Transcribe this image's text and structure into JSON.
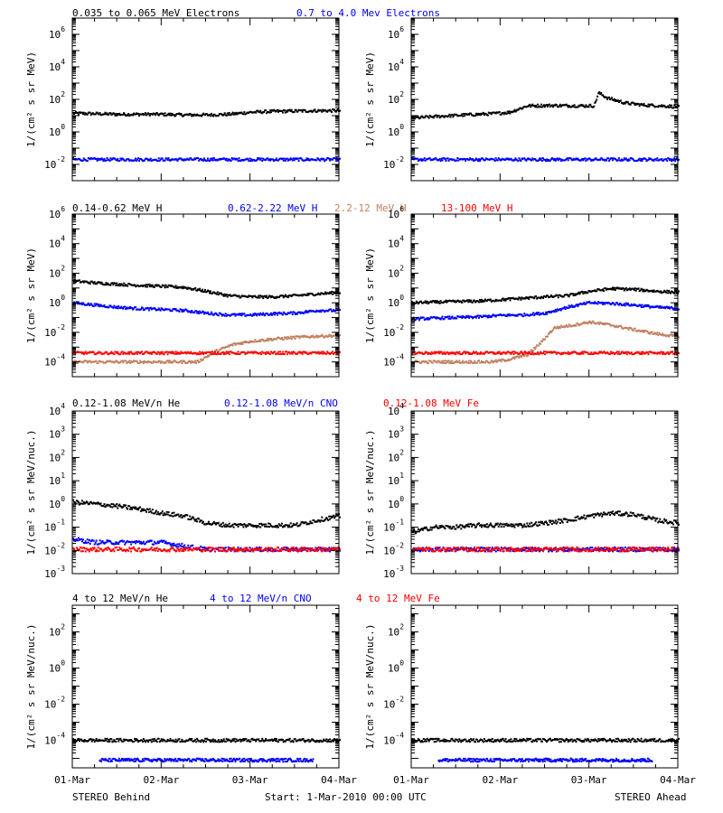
{
  "row_titles": [
    [
      {
        "text": "0.035 to 0.065 MeV Electrons",
        "color": "#000000"
      },
      {
        "text": "0.7 to 4.0 Mev Electrons",
        "color": "#0000ff"
      }
    ],
    [
      {
        "text": "0.14-0.62 MeV H",
        "color": "#000000"
      },
      {
        "text": "0.62-2.22 MeV H",
        "color": "#0000ff"
      },
      {
        "text": "2.2-12 MeV H",
        "color": "#c08060"
      },
      {
        "text": "13-100 MeV H",
        "color": "#ff0000"
      }
    ],
    [
      {
        "text": "0.12-1.08 MeV/n He",
        "color": "#000000"
      },
      {
        "text": "0.12-1.08 MeV/n CNO",
        "color": "#0000ff"
      },
      {
        "text": "0.12-1.08 MeV Fe",
        "color": "#ff0000"
      }
    ],
    [
      {
        "text": "4 to 12 MeV/n He",
        "color": "#000000"
      },
      {
        "text": "4 to 12 MeV/n CNO",
        "color": "#0000ff"
      },
      {
        "text": "4 to 12 MeV Fe",
        "color": "#ff0000"
      }
    ]
  ],
  "footer": {
    "left": "STEREO Behind",
    "center": "Start:  1-Mar-2010 00:00 UTC",
    "right": "STEREO Ahead"
  },
  "chart_data": [
    {
      "type": "scatter",
      "panel": "Behind electrons",
      "ylabel": "1/(cm² s sr MeV)",
      "yscale": "log",
      "ylim": [
        0.001,
        10000000
      ],
      "yticks_base": "10",
      "yticks_exp": [
        "-2",
        "0",
        "2",
        "4",
        "6"
      ],
      "xticks": [],
      "series": [
        {
          "name": "0.035 to 0.065 MeV Electrons",
          "color": "#000000",
          "x": [
            0,
            0.25,
            0.5,
            0.75,
            1.0,
            1.25,
            1.5,
            1.75,
            2.0,
            2.25,
            2.5,
            2.75,
            3.0
          ],
          "y": [
            14,
            13,
            12,
            12,
            12,
            11,
            11,
            12,
            16,
            18,
            19,
            20,
            20
          ]
        },
        {
          "name": "0.7 to 4.0 Mev Electrons",
          "color": "#0000ff",
          "x": [
            0,
            0.5,
            1.0,
            1.5,
            2.0,
            2.5,
            3.0
          ],
          "y": [
            0.02,
            0.02,
            0.02,
            0.02,
            0.02,
            0.02,
            0.02
          ]
        }
      ]
    },
    {
      "type": "scatter",
      "panel": "Ahead electrons",
      "ylabel": "1/(cm² s sr MeV)",
      "yscale": "log",
      "ylim": [
        0.001,
        10000000
      ],
      "yticks_base": "10",
      "yticks_exp": [
        "-2",
        "0",
        "2",
        "4",
        "6"
      ],
      "xticks": [],
      "series": [
        {
          "name": "0.035 to 0.065 MeV Electrons",
          "color": "#000000",
          "x": [
            0,
            0.3,
            0.6,
            0.9,
            1.1,
            1.3,
            1.6,
            1.9,
            2.05,
            2.1,
            2.2,
            2.4,
            2.6,
            2.8,
            3.0
          ],
          "y": [
            7,
            9,
            11,
            13,
            16,
            40,
            42,
            40,
            40,
            250,
            120,
            60,
            45,
            40,
            35
          ]
        },
        {
          "name": "0.7 to 4.0 Mev Electrons",
          "color": "#0000ff",
          "x": [
            0,
            0.5,
            1.0,
            1.5,
            2.0,
            2.5,
            3.0
          ],
          "y": [
            0.02,
            0.02,
            0.02,
            0.02,
            0.02,
            0.02,
            0.02
          ]
        }
      ]
    },
    {
      "type": "scatter",
      "panel": "Behind protons",
      "ylabel": "1/(cm² s sr MeV)",
      "yscale": "log",
      "ylim": [
        1e-05,
        1000000
      ],
      "yticks_base": "10",
      "yticks_exp": [
        "-4",
        "-2",
        "0",
        "2",
        "4",
        "6"
      ],
      "xticks": [],
      "series": [
        {
          "name": "0.14-0.62 MeV H",
          "color": "#000000",
          "x": [
            0,
            0.25,
            0.5,
            0.75,
            1.0,
            1.25,
            1.5,
            1.75,
            2.0,
            2.25,
            2.5,
            2.75,
            3.0
          ],
          "y": [
            30,
            22,
            18,
            15,
            13,
            11,
            6,
            3,
            2.5,
            2.5,
            3,
            4,
            5
          ]
        },
        {
          "name": "0.62-2.22 MeV H",
          "color": "#0000ff",
          "x": [
            0,
            0.25,
            0.5,
            0.75,
            1.0,
            1.25,
            1.5,
            1.75,
            2.0,
            2.25,
            2.5,
            2.75,
            3.0
          ],
          "y": [
            1,
            0.7,
            0.5,
            0.4,
            0.35,
            0.3,
            0.2,
            0.15,
            0.15,
            0.18,
            0.2,
            0.3,
            0.3
          ]
        },
        {
          "name": "2.2-12 MeV H",
          "color": "#c08060",
          "x": [
            0,
            0.5,
            1.0,
            1.4,
            1.6,
            1.8,
            2.0,
            2.25,
            2.5,
            2.75,
            3.0
          ],
          "y": [
            0.0001,
            0.0001,
            0.0001,
            0.0001,
            0.0005,
            0.0015,
            0.0025,
            0.0035,
            0.0045,
            0.0055,
            0.006
          ]
        },
        {
          "name": "13-100 MeV H",
          "color": "#ff0000",
          "x": [
            0,
            0.5,
            1.0,
            1.5,
            2.0,
            2.5,
            3.0
          ],
          "y": [
            0.0004,
            0.0004,
            0.0004,
            0.0004,
            0.0004,
            0.0004,
            0.0004
          ]
        }
      ]
    },
    {
      "type": "scatter",
      "panel": "Ahead protons",
      "ylabel": "1/(cm² s sr MeV)",
      "yscale": "log",
      "ylim": [
        1e-05,
        1000000
      ],
      "yticks_base": "10",
      "yticks_exp": [
        "-4",
        "-2",
        "0",
        "2",
        "4",
        "6"
      ],
      "xticks": [],
      "series": [
        {
          "name": "0.14-0.62 MeV H",
          "color": "#000000",
          "x": [
            0,
            0.25,
            0.5,
            0.75,
            1.0,
            1.25,
            1.5,
            1.75,
            2.0,
            2.25,
            2.5,
            2.75,
            3.0
          ],
          "y": [
            1,
            1.1,
            1.2,
            1.3,
            1.6,
            2.0,
            2.5,
            3,
            6,
            9,
            8,
            6,
            5
          ]
        },
        {
          "name": "0.62-2.22 MeV H",
          "color": "#0000ff",
          "x": [
            0,
            0.25,
            0.5,
            0.75,
            1.0,
            1.25,
            1.5,
            1.75,
            2.0,
            2.25,
            2.5,
            2.75,
            3.0
          ],
          "y": [
            0.08,
            0.09,
            0.1,
            0.11,
            0.14,
            0.15,
            0.2,
            0.5,
            1.0,
            0.9,
            0.7,
            0.5,
            0.4
          ]
        },
        {
          "name": "2.2-12 MeV H",
          "color": "#c08060",
          "x": [
            0,
            0.3,
            0.6,
            0.9,
            1.1,
            1.3,
            1.45,
            1.6,
            1.8,
            2.0,
            2.25,
            2.5,
            2.75,
            3.0
          ],
          "y": [
            0.0001,
            0.0001,
            0.0001,
            0.0001,
            0.00015,
            0.0003,
            0.002,
            0.02,
            0.03,
            0.05,
            0.03,
            0.015,
            0.008,
            0.005
          ]
        },
        {
          "name": "13-100 MeV H",
          "color": "#ff0000",
          "x": [
            0,
            0.5,
            1.0,
            1.5,
            2.0,
            2.5,
            3.0
          ],
          "y": [
            0.0004,
            0.0004,
            0.0004,
            0.0004,
            0.0004,
            0.0004,
            0.0004
          ]
        }
      ]
    },
    {
      "type": "scatter",
      "panel": "Behind low-energy heavy ions",
      "ylabel": "1/(cm² s sr MeV/nuc.)",
      "yscale": "log",
      "ylim": [
        0.001,
        10000
      ],
      "yticks_base": "10",
      "yticks_exp": [
        "-3",
        "-2",
        "-1",
        "0",
        "1",
        "2",
        "3",
        "4"
      ],
      "xticks": [],
      "series": [
        {
          "name": "0.12-1.08 MeV/n He",
          "color": "#000000",
          "x": [
            0,
            0.25,
            0.5,
            0.75,
            1.0,
            1.25,
            1.5,
            1.75,
            2.0,
            2.25,
            2.5,
            2.75,
            3.0
          ],
          "y": [
            1.2,
            1.0,
            0.8,
            0.6,
            0.4,
            0.3,
            0.15,
            0.12,
            0.12,
            0.12,
            0.12,
            0.2,
            0.3
          ]
        },
        {
          "name": "0.12-1.08 MeV/n CNO",
          "color": "#0000ff",
          "x": [
            0,
            0.25,
            0.5,
            0.75,
            1.0,
            1.5,
            2.0,
            2.5,
            3.0
          ],
          "y": [
            0.03,
            0.022,
            0.022,
            0.022,
            0.022,
            0.011,
            0.011,
            0.011,
            0.011
          ]
        },
        {
          "name": "0.12-1.08 MeV Fe",
          "color": "#ff0000",
          "x": [
            0,
            0.5,
            1.0,
            1.5,
            2.0,
            2.5,
            3.0
          ],
          "y": [
            0.011,
            0.011,
            0.011,
            0.011,
            0.011,
            0.011,
            0.011
          ]
        }
      ]
    },
    {
      "type": "scatter",
      "panel": "Ahead low-energy heavy ions",
      "ylabel": "1/(cm² s sr MeV/nuc.)",
      "yscale": "log",
      "ylim": [
        0.001,
        10000
      ],
      "yticks_base": "10",
      "yticks_exp": [
        "-3",
        "-2",
        "-1",
        "0",
        "1",
        "2",
        "3",
        "4"
      ],
      "xticks": [],
      "series": [
        {
          "name": "0.12-1.08 MeV/n He",
          "color": "#000000",
          "x": [
            0,
            0.25,
            0.5,
            0.75,
            1.0,
            1.25,
            1.5,
            1.75,
            2.0,
            2.25,
            2.5,
            2.75,
            3.0
          ],
          "y": [
            0.06,
            0.1,
            0.1,
            0.12,
            0.12,
            0.12,
            0.15,
            0.2,
            0.3,
            0.4,
            0.35,
            0.2,
            0.15
          ]
        },
        {
          "name": "0.12-1.08 MeV/n CNO",
          "color": "#0000ff",
          "x": [
            0,
            0.5,
            1.0,
            1.5,
            2.0,
            2.5,
            3.0
          ],
          "y": [
            0.011,
            0.011,
            0.011,
            0.011,
            0.011,
            0.011,
            0.011
          ]
        },
        {
          "name": "0.12-1.08 MeV Fe",
          "color": "#ff0000",
          "x": [
            0,
            0.5,
            1.0,
            1.5,
            2.0,
            2.5,
            3.0
          ],
          "y": [
            0.011,
            0.011,
            0.011,
            0.011,
            0.011,
            0.011,
            0.011
          ]
        }
      ]
    },
    {
      "type": "scatter",
      "panel": "Behind high-energy heavy ions",
      "ylabel": "1/(cm² s sr MeV/nuc.)",
      "yscale": "log",
      "ylim": [
        3e-06,
        3000
      ],
      "yticks_base": "10",
      "yticks_exp": [
        "-4",
        "-2",
        "0",
        "2"
      ],
      "xticks": [
        "01-Mar",
        "02-Mar",
        "03-Mar",
        "04-Mar"
      ],
      "series": [
        {
          "name": "4 to 12 MeV/n He",
          "color": "#000000",
          "x": [
            0,
            0.5,
            1.0,
            1.5,
            2.0,
            2.5,
            3.0
          ],
          "y": [
            0.0001,
            0.0001,
            0.0001,
            0.0001,
            0.0001,
            0.0001,
            0.0001
          ]
        },
        {
          "name": "4 to 12 MeV/n CNO",
          "color": "#0000ff",
          "x": [
            0.3,
            0.9,
            1.5,
            2.1,
            2.7
          ],
          "y": [
            8e-06,
            8e-06,
            8e-06,
            8e-06,
            8e-06
          ]
        }
      ]
    },
    {
      "type": "scatter",
      "panel": "Ahead high-energy heavy ions",
      "ylabel": "1/(cm² s sr MeV/nuc.)",
      "yscale": "log",
      "ylim": [
        3e-06,
        3000
      ],
      "yticks_base": "10",
      "yticks_exp": [
        "-4",
        "-2",
        "0",
        "2"
      ],
      "xticks": [
        "01-Mar",
        "02-Mar",
        "03-Mar",
        "04-Mar"
      ],
      "series": [
        {
          "name": "4 to 12 MeV/n He",
          "color": "#000000",
          "x": [
            0,
            0.5,
            1.0,
            1.5,
            2.0,
            2.5,
            3.0
          ],
          "y": [
            0.0001,
            0.0001,
            0.0001,
            0.0001,
            0.0001,
            0.0001,
            0.0001
          ]
        },
        {
          "name": "4 to 12 MeV/n CNO",
          "color": "#0000ff",
          "x": [
            0.3,
            0.9,
            1.5,
            2.1,
            2.7
          ],
          "y": [
            8e-06,
            8e-06,
            8e-06,
            8e-06,
            8e-06
          ]
        }
      ]
    }
  ]
}
